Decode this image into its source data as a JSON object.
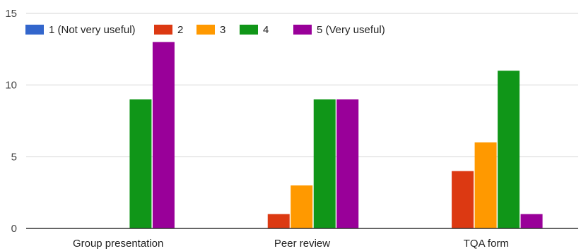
{
  "chart_data": {
    "type": "bar",
    "title": "",
    "xlabel": "",
    "ylabel": "",
    "ylim": [
      0,
      15
    ],
    "yticks": [
      0,
      5,
      10,
      15
    ],
    "grid": true,
    "legend_position": "top-left",
    "categories": [
      "Group presentation",
      "Peer review",
      "TQA form"
    ],
    "series": [
      {
        "name": "1 (Not very useful)",
        "color": "#3366cc",
        "values": [
          0,
          0,
          0
        ]
      },
      {
        "name": "2",
        "color": "#dc3912",
        "values": [
          0,
          1,
          4
        ]
      },
      {
        "name": "3",
        "color": "#ff9900",
        "values": [
          0,
          3,
          6
        ]
      },
      {
        "name": "4",
        "color": "#109618",
        "values": [
          9,
          9,
          11
        ]
      },
      {
        "name": "5 (Very useful)",
        "color": "#990099",
        "values": [
          13,
          9,
          1
        ]
      }
    ]
  }
}
